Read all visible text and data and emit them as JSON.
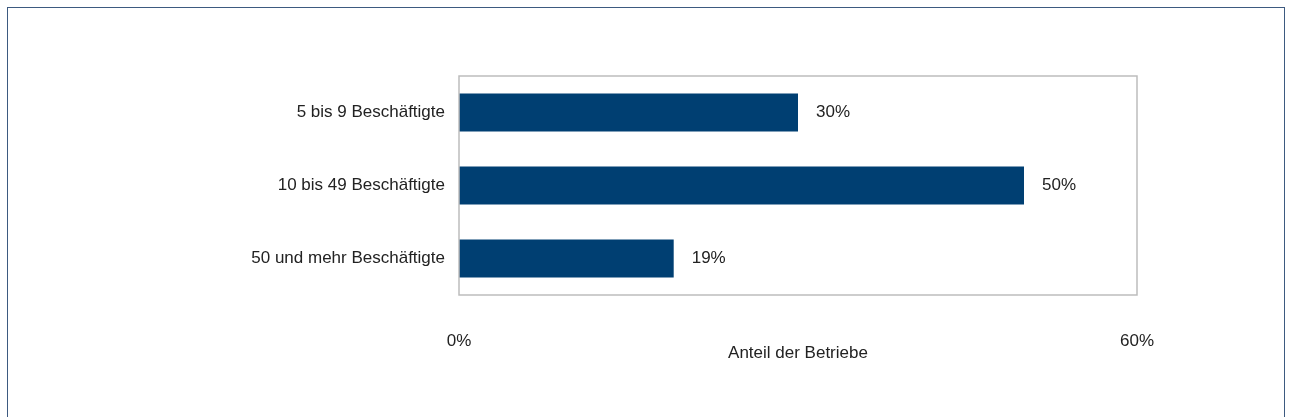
{
  "chart_data": {
    "type": "bar",
    "orientation": "horizontal",
    "xlabel": "Anteil der Betriebe",
    "categories": [
      "5 bis 9 Beschäftigte",
      "10 bis 49 Beschäftigte",
      "50 und mehr Beschäftigte"
    ],
    "values": [
      30,
      50,
      19
    ],
    "color": "#003f72",
    "value_labels": [
      "30%",
      "50%",
      "19%"
    ],
    "xlim": [
      0,
      60
    ],
    "xticks": [
      {
        "value": 0,
        "label": "0%"
      },
      {
        "value": 60,
        "label": "60%"
      }
    ],
    "legend": false,
    "grid": false
  }
}
